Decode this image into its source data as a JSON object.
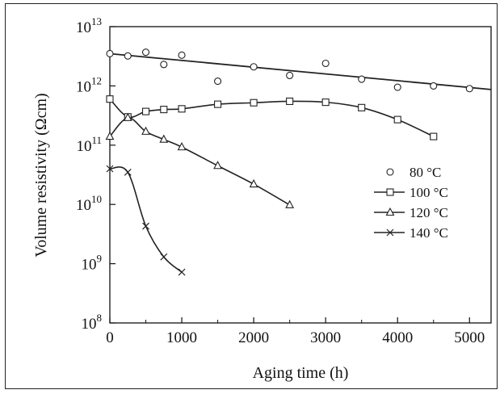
{
  "chart_data": {
    "type": "line",
    "title": "",
    "xlabel": "Aging time (h)",
    "ylabel": "Volume resistivity (Ωcm)",
    "xlim": [
      0,
      5300
    ],
    "ylim": [
      100000000.0,
      10000000000000.0
    ],
    "y_scale": "log",
    "x_ticks": [
      0,
      1000,
      2000,
      3000,
      4000,
      5000
    ],
    "x_tick_labels": [
      "0",
      "1000",
      "2000",
      "3000",
      "4000",
      "5000"
    ],
    "y_ticks": [
      {
        "value": 100000000.0,
        "base": "10",
        "exp": "8"
      },
      {
        "value": 1000000000.0,
        "base": "10",
        "exp": "9"
      },
      {
        "value": 10000000000.0,
        "base": "10",
        "exp": "10"
      },
      {
        "value": 100000000000.0,
        "base": "10",
        "exp": "11"
      },
      {
        "value": 1000000000000.0,
        "base": "10",
        "exp": "12"
      },
      {
        "value": 10000000000000.0,
        "base": "10",
        "exp": "13"
      }
    ],
    "grid": false,
    "legend_position": "right-middle",
    "series": [
      {
        "name": "80 °C",
        "marker": "circle",
        "line": "linear-fit",
        "x": [
          0,
          250,
          500,
          750,
          1000,
          1500,
          2000,
          2500,
          3000,
          3500,
          4000,
          4500,
          5000
        ],
        "y": [
          3500000000000.0,
          3200000000000.0,
          3700000000000.0,
          2300000000000.0,
          3300000000000.0,
          1200000000000.0,
          2100000000000.0,
          1500000000000.0,
          2400000000000.0,
          1300000000000.0,
          950000000000.0,
          1000000000000.0,
          900000000000.0
        ],
        "fit_line": {
          "x": [
            0,
            5300
          ],
          "y": [
            3500000000000.0,
            870000000000.0
          ]
        }
      },
      {
        "name": "100 °C",
        "marker": "square",
        "line": "smooth",
        "x": [
          0,
          250,
          500,
          750,
          1000,
          1500,
          2000,
          2500,
          3000,
          3500,
          4000,
          4500
        ],
        "y": [
          600000000000.0,
          300000000000.0,
          370000000000.0,
          400000000000.0,
          410000000000.0,
          490000000000.0,
          520000000000.0,
          550000000000.0,
          530000000000.0,
          430000000000.0,
          270000000000.0,
          140000000000.0
        ]
      },
      {
        "name": "120 °C",
        "marker": "triangle",
        "line": "smooth",
        "x": [
          0,
          250,
          500,
          750,
          1000,
          1500,
          2000,
          2500
        ],
        "y": [
          140000000000.0,
          290000000000.0,
          170000000000.0,
          125000000000.0,
          93000000000.0,
          45000000000.0,
          22000000000.0,
          9800000000.0
        ]
      },
      {
        "name": "140 °C",
        "marker": "x",
        "line": "smooth",
        "x": [
          0,
          250,
          500,
          750,
          1000
        ],
        "y": [
          40000000000.0,
          35000000000.0,
          4300000000.0,
          1300000000.0,
          720000000.0
        ]
      }
    ]
  }
}
